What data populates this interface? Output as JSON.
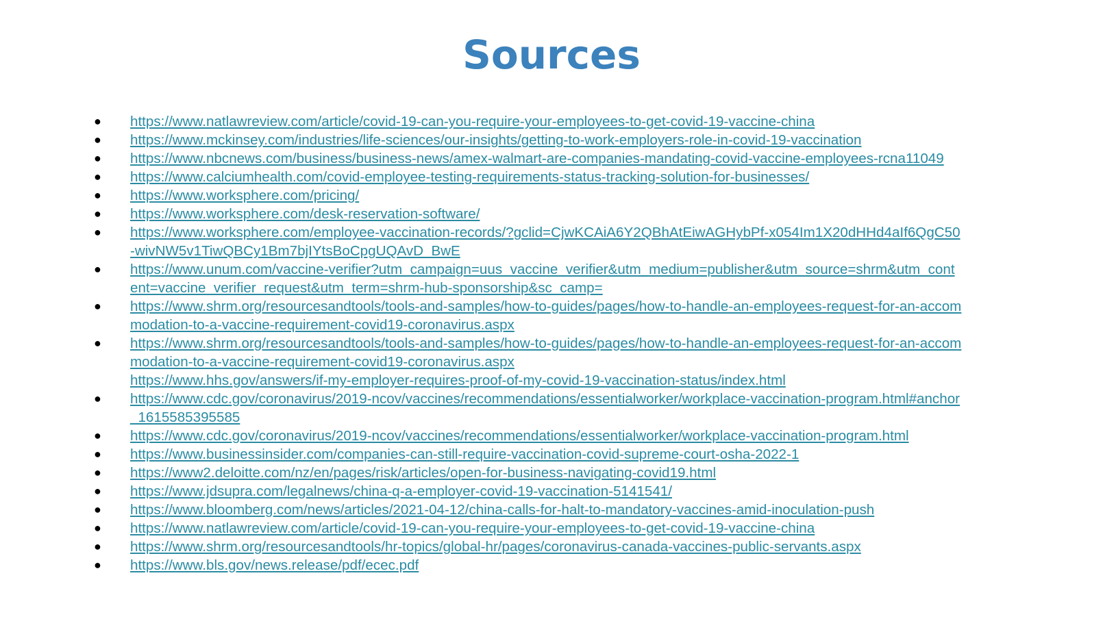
{
  "title": "Sources",
  "bullet": "●",
  "sources": [
    {
      "lines": [
        "https://www.natlawreview.com/article/covid-19-can-you-require-your-employees-to-get-covid-19-vaccine-china"
      ],
      "bullet": true
    },
    {
      "lines": [
        "https://www.mckinsey.com/industries/life-sciences/our-insights/getting-to-work-employers-role-in-covid-19-vaccination"
      ],
      "bullet": true
    },
    {
      "lines": [
        "https://www.nbcnews.com/business/business-news/amex-walmart-are-companies-mandating-covid-vaccine-employees-rcna11049"
      ],
      "bullet": true
    },
    {
      "lines": [
        "https://www.calciumhealth.com/covid-employee-testing-requirements-status-tracking-solution-for-businesses/"
      ],
      "bullet": true
    },
    {
      "lines": [
        "https://www.worksphere.com/pricing/"
      ],
      "bullet": true
    },
    {
      "lines": [
        "https://www.worksphere.com/desk-reservation-software/"
      ],
      "bullet": true
    },
    {
      "lines": [
        "https://www.worksphere.com/employee-vaccination-records/?gclid=CjwKCAiA6Y2QBhAtEiwAGHybPf-x054Im1X20dHHd4aIf6QgC50",
        "-wivNW5v1TiwQBCy1Bm7bjIYtsBoCpgUQAvD_BwE"
      ],
      "bullet": true
    },
    {
      "lines": [
        "https://www.unum.com/vaccine-verifier?utm_campaign=uus_vaccine_verifier&utm_medium=publisher&utm_source=shrm&utm_cont",
        "ent=vaccine_verifier_request&utm_term=shrm-hub-sponsorship&sc_camp="
      ],
      "bullet": true
    },
    {
      "lines": [
        "https://www.shrm.org/resourcesandtools/tools-and-samples/how-to-guides/pages/how-to-handle-an-employees-request-for-an-accom",
        "modation-to-a-vaccine-requirement-covid19-coronavirus.aspx"
      ],
      "bullet": true
    },
    {
      "lines": [
        "https://www.shrm.org/resourcesandtools/tools-and-samples/how-to-guides/pages/how-to-handle-an-employees-request-for-an-accom",
        "modation-to-a-vaccine-requirement-covid19-coronavirus.aspx",
        "https://www.hhs.gov/answers/if-my-employer-requires-proof-of-my-covid-19-vaccination-status/index.html"
      ],
      "bullet": true
    },
    {
      "lines": [
        "https://www.cdc.gov/coronavirus/2019-ncov/vaccines/recommendations/essentialworker/workplace-vaccination-program.html#anchor",
        "_1615585395585"
      ],
      "bullet": true
    },
    {
      "lines": [
        "https://www.cdc.gov/coronavirus/2019-ncov/vaccines/recommendations/essentialworker/workplace-vaccination-program.html"
      ],
      "bullet": true
    },
    {
      "lines": [
        "https://www.businessinsider.com/companies-can-still-require-vaccination-covid-supreme-court-osha-2022-1"
      ],
      "bullet": true
    },
    {
      "lines": [
        "https://www2.deloitte.com/nz/en/pages/risk/articles/open-for-business-navigating-covid19.html"
      ],
      "bullet": true
    },
    {
      "lines": [
        "https://www.jdsupra.com/legalnews/china-q-a-employer-covid-19-vaccination-5141541/"
      ],
      "bullet": true
    },
    {
      "lines": [
        "https://www.bloomberg.com/news/articles/2021-04-12/china-calls-for-halt-to-mandatory-vaccines-amid-inoculation-push"
      ],
      "bullet": true
    },
    {
      "lines": [
        "https://www.natlawreview.com/article/covid-19-can-you-require-your-employees-to-get-covid-19-vaccine-china"
      ],
      "bullet": true
    },
    {
      "lines": [
        "https://www.shrm.org/resourcesandtools/hr-topics/global-hr/pages/coronavirus-canada-vaccines-public-servants.aspx"
      ],
      "bullet": true
    },
    {
      "lines": [
        "https://www.bls.gov/news.release/pdf/ecec.pdf"
      ],
      "bullet": true
    }
  ]
}
